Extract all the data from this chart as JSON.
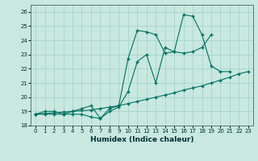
{
  "xlabel": "Humidex (Indice chaleur)",
  "bg_color": "#c8e8e0",
  "grid_color": "#a8d4cc",
  "line_color": "#007060",
  "xlim": [
    -0.5,
    23.5
  ],
  "ylim": [
    18,
    26.5
  ],
  "xticks": [
    0,
    1,
    2,
    3,
    4,
    5,
    6,
    7,
    8,
    9,
    10,
    11,
    12,
    13,
    14,
    15,
    16,
    17,
    18,
    19,
    20,
    21,
    22,
    23
  ],
  "yticks": [
    18,
    19,
    20,
    21,
    22,
    23,
    24,
    25,
    26
  ],
  "line1_x": [
    0,
    1,
    2,
    3,
    4,
    5,
    6,
    7,
    8,
    9,
    10,
    11,
    12,
    13,
    14,
    15,
    16,
    17,
    18,
    19,
    20,
    21
  ],
  "line1_y": [
    18.8,
    18.8,
    18.8,
    18.8,
    18.8,
    18.8,
    18.6,
    18.5,
    19.2,
    19.4,
    22.7,
    24.7,
    24.6,
    24.4,
    23.1,
    23.2,
    25.8,
    25.7,
    24.4,
    22.2,
    21.8,
    21.8
  ],
  "line2_x": [
    0,
    1,
    2,
    3,
    4,
    5,
    6,
    7,
    8,
    9,
    10,
    11,
    12,
    13,
    14,
    15,
    16,
    17,
    18,
    19
  ],
  "line2_y": [
    18.8,
    19.0,
    19.0,
    18.8,
    19.0,
    19.2,
    19.4,
    18.5,
    19.0,
    19.3,
    20.4,
    22.5,
    23.0,
    21.0,
    23.5,
    23.2,
    23.1,
    23.2,
    23.5,
    24.4
  ],
  "line3_x": [
    0,
    1,
    2,
    3,
    4,
    5,
    6,
    7,
    8,
    9,
    10,
    11,
    12,
    13,
    14,
    15,
    16,
    17,
    18,
    19,
    20,
    21,
    22,
    23
  ],
  "line3_y": [
    18.8,
    18.85,
    18.9,
    18.95,
    19.0,
    19.05,
    19.1,
    19.2,
    19.3,
    19.4,
    19.55,
    19.7,
    19.85,
    20.0,
    20.15,
    20.3,
    20.5,
    20.65,
    20.8,
    21.0,
    21.2,
    21.4,
    21.65,
    21.8
  ]
}
